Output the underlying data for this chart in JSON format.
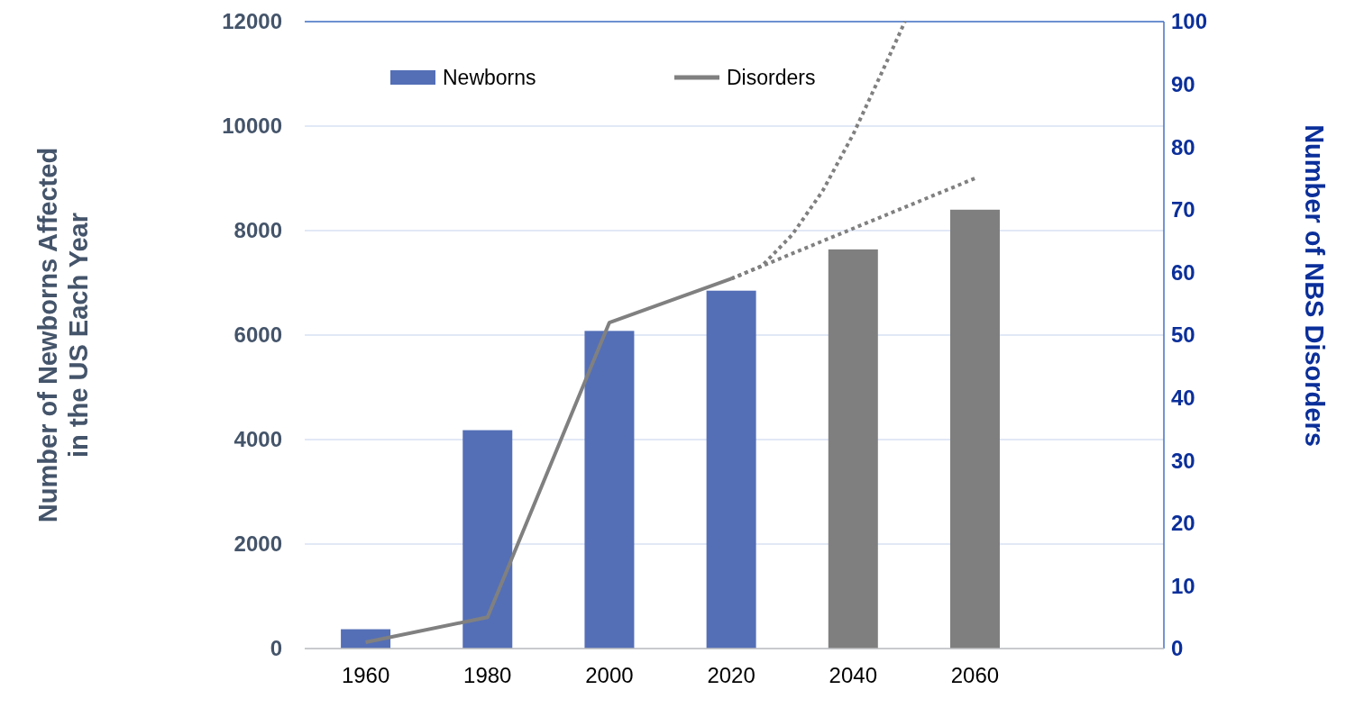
{
  "chart_data": {
    "type": "bar",
    "ylabel": "Number of Newborns Affected\nin the US Each Year",
    "y2label": "Number of NBS Disorders",
    "x": [
      1960,
      1980,
      2000,
      2020,
      2040,
      2060
    ],
    "xlim": [
      1950,
      2091
    ],
    "xticks": [
      1960,
      1980,
      2000,
      2020,
      2040,
      2060
    ],
    "ylim": [
      0,
      12000
    ],
    "yticks": [
      0,
      2000,
      4000,
      6000,
      8000,
      10000,
      12000
    ],
    "y2lim": [
      0,
      100
    ],
    "y2ticks": [
      0,
      10,
      20,
      30,
      40,
      50,
      60,
      70,
      80,
      90,
      100
    ],
    "grid": "y",
    "legend": "top",
    "series": [
      {
        "name": "Newborns",
        "color": "#546fb6",
        "colors": [
          "#546fb6",
          "#546fb6",
          "#546fb6",
          "#546fb6",
          "#7f7f7f",
          "#7f7f7f"
        ],
        "values": [
          370,
          4180,
          6080,
          6850,
          7640,
          8400
        ]
      },
      {
        "name": "Disorders",
        "type": "line",
        "axis": "y2",
        "color": "#808080",
        "line_style": "solid",
        "values": [
          1,
          5,
          52,
          59,
          null,
          null
        ]
      },
      {
        "type": "line",
        "axis": "y2",
        "color": "#808080",
        "line_style": "dotted",
        "x": [
          2020,
          2025,
          2030,
          2035,
          2040,
          2045,
          2048.5
        ],
        "values": [
          59,
          61,
          66,
          73,
          82,
          92.5,
          100
        ]
      },
      {
        "type": "line",
        "axis": "y2",
        "color": "#808080",
        "line_style": "dotted",
        "x": [
          2020,
          2060
        ],
        "values": [
          59,
          75
        ]
      }
    ]
  }
}
